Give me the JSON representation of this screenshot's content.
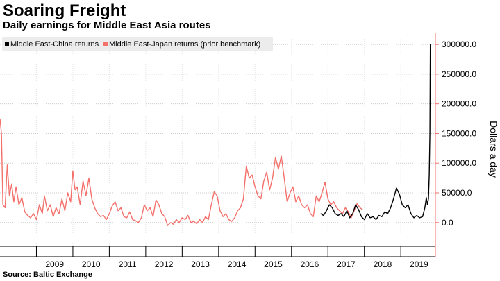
{
  "title": "Soaring Freight",
  "subtitle": "Daily earnings for Middle East Asia routes",
  "source": "Source: Baltic Exchange",
  "chart_data": {
    "type": "line",
    "title": "Soaring Freight",
    "subtitle": "Daily earnings for Middle East Asia routes",
    "xlabel": "",
    "ylabel": "Dollars a day",
    "x_ticks": [
      "2009",
      "2010",
      "2011",
      "2012",
      "2013",
      "2014",
      "2015",
      "2016",
      "2017",
      "2018",
      "2019"
    ],
    "y_ticks": [
      "300000.0",
      "250000.0",
      "200000.0",
      "150000.0",
      "100000.0",
      "50000.0",
      "0.0"
    ],
    "ylim": [
      -40000,
      320000
    ],
    "xlim": [
      2008.0,
      2019.95
    ],
    "grid": true,
    "y_axis_position": "right",
    "legend_position": "top-left",
    "colors": {
      "china": "#000000",
      "japan": "#f4706b",
      "axis": "#f4706b",
      "grid": "#cccccc"
    },
    "series": [
      {
        "name": "Middle East-Japan returns (prior benchmark)",
        "color": "#f4706b",
        "points": [
          [
            2008.0,
            175000
          ],
          [
            2008.04,
            150000
          ],
          [
            2008.08,
            30000
          ],
          [
            2008.14,
            25000
          ],
          [
            2008.2,
            97000
          ],
          [
            2008.26,
            45000
          ],
          [
            2008.32,
            65000
          ],
          [
            2008.38,
            35000
          ],
          [
            2008.44,
            60000
          ],
          [
            2008.52,
            30000
          ],
          [
            2008.6,
            42000
          ],
          [
            2008.68,
            18000
          ],
          [
            2008.76,
            12000
          ],
          [
            2008.84,
            8000
          ],
          [
            2008.92,
            15000
          ],
          [
            2009.0,
            5000
          ],
          [
            2009.08,
            30000
          ],
          [
            2009.16,
            15000
          ],
          [
            2009.22,
            45000
          ],
          [
            2009.3,
            20000
          ],
          [
            2009.38,
            30000
          ],
          [
            2009.46,
            10000
          ],
          [
            2009.54,
            25000
          ],
          [
            2009.62,
            15000
          ],
          [
            2009.7,
            40000
          ],
          [
            2009.78,
            20000
          ],
          [
            2009.86,
            50000
          ],
          [
            2009.94,
            35000
          ],
          [
            2010.0,
            87000
          ],
          [
            2010.06,
            55000
          ],
          [
            2010.12,
            60000
          ],
          [
            2010.2,
            30000
          ],
          [
            2010.28,
            70000
          ],
          [
            2010.36,
            45000
          ],
          [
            2010.44,
            75000
          ],
          [
            2010.52,
            40000
          ],
          [
            2010.6,
            25000
          ],
          [
            2010.68,
            15000
          ],
          [
            2010.76,
            10000
          ],
          [
            2010.84,
            12000
          ],
          [
            2010.92,
            5000
          ],
          [
            2011.0,
            15000
          ],
          [
            2011.08,
            28000
          ],
          [
            2011.16,
            35000
          ],
          [
            2011.24,
            20000
          ],
          [
            2011.32,
            25000
          ],
          [
            2011.4,
            10000
          ],
          [
            2011.48,
            8000
          ],
          [
            2011.56,
            18000
          ],
          [
            2011.64,
            5000
          ],
          [
            2011.72,
            3000
          ],
          [
            2011.8,
            0
          ],
          [
            2011.88,
            8000
          ],
          [
            2011.96,
            30000
          ],
          [
            2012.04,
            20000
          ],
          [
            2012.12,
            25000
          ],
          [
            2012.2,
            10000
          ],
          [
            2012.28,
            38000
          ],
          [
            2012.36,
            30000
          ],
          [
            2012.44,
            15000
          ],
          [
            2012.52,
            10000
          ],
          [
            2012.6,
            -5000
          ],
          [
            2012.68,
            0
          ],
          [
            2012.76,
            -3000
          ],
          [
            2012.84,
            5000
          ],
          [
            2012.92,
            0
          ],
          [
            2013.0,
            8000
          ],
          [
            2013.08,
            5000
          ],
          [
            2013.16,
            12000
          ],
          [
            2013.24,
            0
          ],
          [
            2013.32,
            2000
          ],
          [
            2013.4,
            -2000
          ],
          [
            2013.48,
            5000
          ],
          [
            2013.56,
            0
          ],
          [
            2013.64,
            10000
          ],
          [
            2013.72,
            5000
          ],
          [
            2013.8,
            30000
          ],
          [
            2013.88,
            52000
          ],
          [
            2013.96,
            45000
          ],
          [
            2014.04,
            20000
          ],
          [
            2014.12,
            10000
          ],
          [
            2014.2,
            15000
          ],
          [
            2014.28,
            5000
          ],
          [
            2014.36,
            2000
          ],
          [
            2014.44,
            8000
          ],
          [
            2014.52,
            20000
          ],
          [
            2014.6,
            25000
          ],
          [
            2014.68,
            40000
          ],
          [
            2014.76,
            95000
          ],
          [
            2014.84,
            75000
          ],
          [
            2014.92,
            80000
          ],
          [
            2015.0,
            60000
          ],
          [
            2015.08,
            45000
          ],
          [
            2015.16,
            40000
          ],
          [
            2015.24,
            70000
          ],
          [
            2015.32,
            85000
          ],
          [
            2015.4,
            55000
          ],
          [
            2015.48,
            75000
          ],
          [
            2015.56,
            110000
          ],
          [
            2015.64,
            90000
          ],
          [
            2015.72,
            112000
          ],
          [
            2015.8,
            75000
          ],
          [
            2015.88,
            35000
          ],
          [
            2015.96,
            50000
          ],
          [
            2016.04,
            60000
          ],
          [
            2016.12,
            35000
          ],
          [
            2016.2,
            45000
          ],
          [
            2016.28,
            30000
          ],
          [
            2016.36,
            25000
          ],
          [
            2016.44,
            30000
          ],
          [
            2016.52,
            15000
          ],
          [
            2016.6,
            10000
          ],
          [
            2016.68,
            45000
          ],
          [
            2016.76,
            35000
          ],
          [
            2016.84,
            50000
          ],
          [
            2016.92,
            68000
          ],
          [
            2017.0,
            40000
          ],
          [
            2017.08,
            30000
          ],
          [
            2017.16,
            35000
          ],
          [
            2017.24,
            25000
          ],
          [
            2017.32,
            20000
          ],
          [
            2017.4,
            15000
          ],
          [
            2017.48,
            25000
          ],
          [
            2017.56,
            18000
          ],
          [
            2017.64,
            8000
          ],
          [
            2017.72,
            20000
          ],
          [
            2017.8,
            32000
          ],
          [
            2017.88,
            25000
          ],
          [
            2017.95,
            22000
          ]
        ]
      },
      {
        "name": "Middle East-China returns",
        "color": "#000000",
        "points": [
          [
            2016.8,
            15000
          ],
          [
            2016.88,
            12000
          ],
          [
            2016.96,
            20000
          ],
          [
            2017.04,
            30000
          ],
          [
            2017.12,
            25000
          ],
          [
            2017.2,
            15000
          ],
          [
            2017.28,
            12000
          ],
          [
            2017.36,
            15000
          ],
          [
            2017.44,
            10000
          ],
          [
            2017.52,
            20000
          ],
          [
            2017.6,
            8000
          ],
          [
            2017.68,
            15000
          ],
          [
            2017.76,
            30000
          ],
          [
            2017.84,
            22000
          ],
          [
            2017.92,
            10000
          ],
          [
            2018.0,
            5000
          ],
          [
            2018.08,
            15000
          ],
          [
            2018.16,
            8000
          ],
          [
            2018.24,
            10000
          ],
          [
            2018.32,
            5000
          ],
          [
            2018.4,
            12000
          ],
          [
            2018.48,
            10000
          ],
          [
            2018.56,
            18000
          ],
          [
            2018.64,
            15000
          ],
          [
            2018.72,
            25000
          ],
          [
            2018.8,
            40000
          ],
          [
            2018.88,
            58000
          ],
          [
            2018.96,
            48000
          ],
          [
            2019.04,
            30000
          ],
          [
            2019.12,
            25000
          ],
          [
            2019.2,
            30000
          ],
          [
            2019.28,
            15000
          ],
          [
            2019.36,
            8000
          ],
          [
            2019.44,
            12000
          ],
          [
            2019.52,
            8000
          ],
          [
            2019.6,
            10000
          ],
          [
            2019.66,
            25000
          ],
          [
            2019.7,
            42000
          ],
          [
            2019.73,
            30000
          ],
          [
            2019.76,
            40000
          ],
          [
            2019.78,
            80000
          ],
          [
            2019.8,
            150000
          ],
          [
            2019.81,
            300000
          ]
        ]
      }
    ]
  }
}
